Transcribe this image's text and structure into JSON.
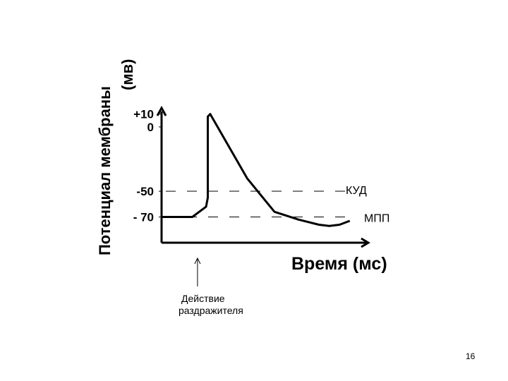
{
  "chart_data": {
    "type": "line",
    "ylabel": "Потенциал мембраны",
    "yunit": "(мв)",
    "xlabel": "Время (мс)",
    "y_ticks": [
      {
        "label": "+10",
        "value": 10
      },
      {
        "label": "0",
        "value": 0
      },
      {
        "label": "-50",
        "value": -50
      },
      {
        "label": "- 70",
        "value": -70
      }
    ],
    "ylim": [
      -90,
      12
    ],
    "xlim": [
      0,
      6
    ],
    "grid": false,
    "series": [
      {
        "x": [
          0.0,
          0.9,
          1.3,
          1.35,
          1.35,
          1.42,
          2.5,
          3.3,
          4.0,
          4.6,
          4.9,
          5.2,
          5.5
        ],
        "y": [
          -70,
          -70,
          -62,
          -55,
          8,
          10,
          -40,
          -66,
          -72,
          -76,
          -77,
          -76,
          -73
        ]
      }
    ],
    "reference_lines": [
      {
        "label": "КУД",
        "value": -50
      },
      {
        "label": "МПП",
        "value": -70
      }
    ],
    "annotations": {
      "stimulus": {
        "line1": "Действие",
        "line2": "раздражителя",
        "x": 1.05
      }
    }
  },
  "page_number": "16"
}
